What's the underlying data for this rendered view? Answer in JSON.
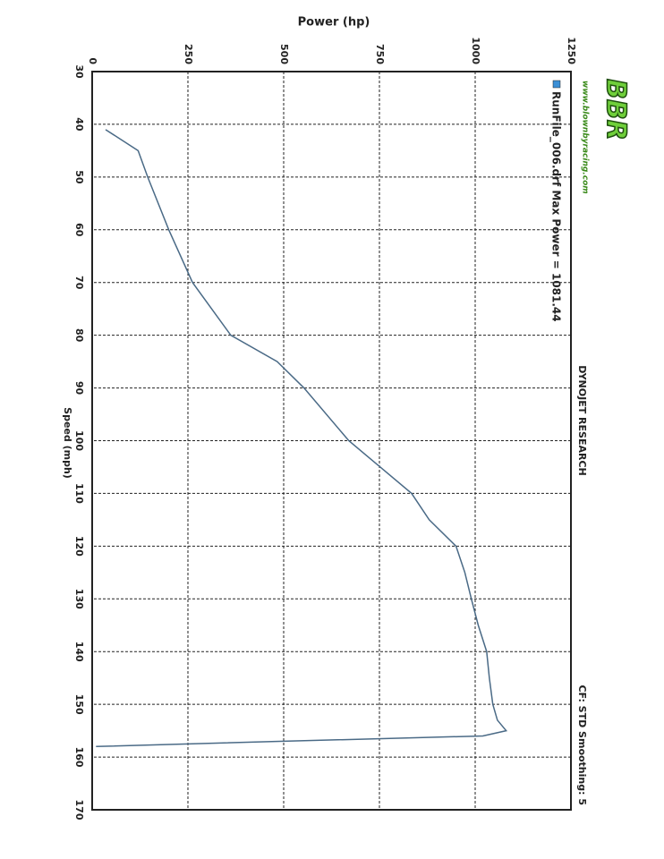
{
  "chart_data": {
    "type": "line",
    "title": "DYNOJET RESEARCH",
    "subtitle": "CF: STD  Smoothing: 5",
    "logo": {
      "text": "BBR",
      "url": "www.blownbyracing.com"
    },
    "x_label": "Speed (mph)",
    "y_label": "Power (hp)",
    "xlim": [
      30,
      170
    ],
    "xticks": [
      30,
      40,
      50,
      60,
      70,
      80,
      90,
      100,
      110,
      120,
      130,
      140,
      150,
      160,
      170
    ],
    "ylim": [
      0,
      1250
    ],
    "yticks": [
      0,
      250,
      500,
      750,
      1000,
      1250
    ],
    "grid": true,
    "x": [
      41,
      45,
      50,
      60,
      70,
      80,
      85,
      90,
      100,
      105,
      110,
      115,
      120,
      125,
      130,
      135,
      140,
      145,
      150,
      153,
      155,
      156,
      157,
      158
    ],
    "series": [
      {
        "name": "RunFile_006.drf Max Power = 1081.44",
        "color": "#4a6a86",
        "values": [
          35,
          120,
          145,
          200,
          262,
          362,
          483,
          553,
          670,
          752,
          834,
          880,
          950,
          973,
          990,
          1008,
          1030,
          1037,
          1046,
          1058,
          1081,
          1020,
          500,
          10
        ]
      }
    ]
  }
}
